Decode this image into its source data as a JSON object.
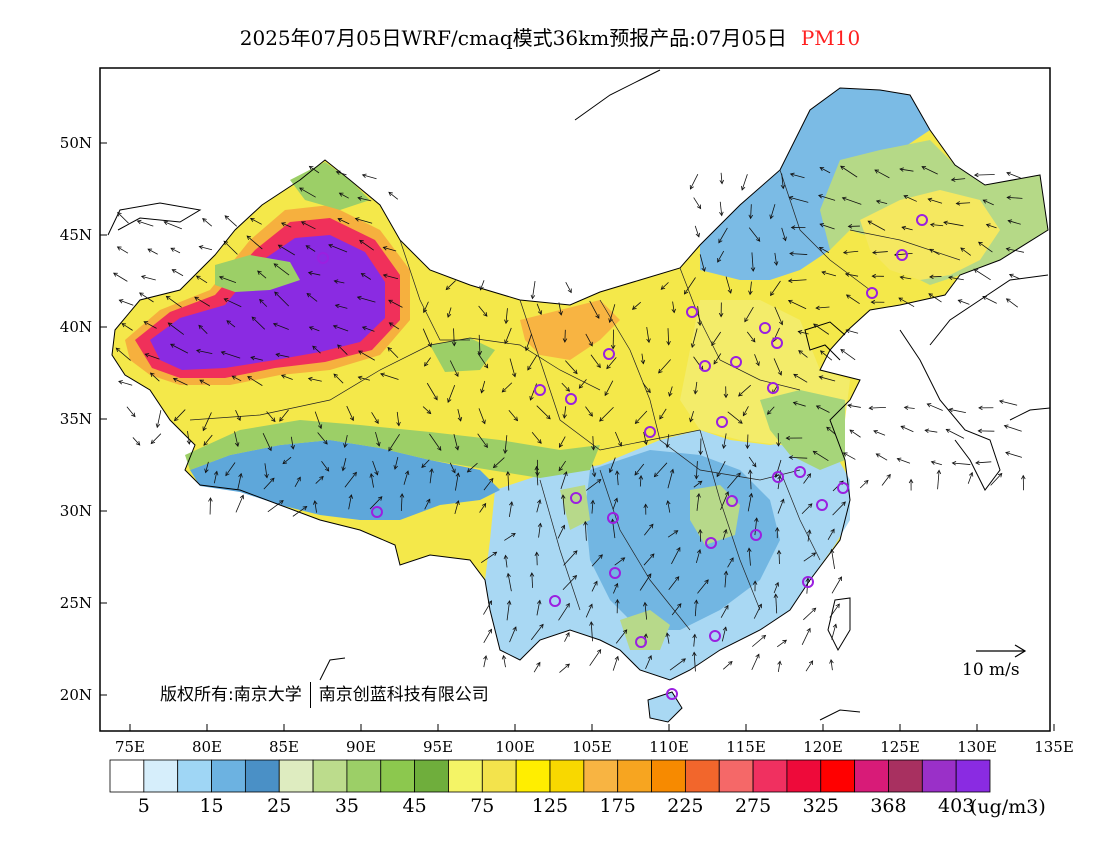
{
  "header": {
    "title": "2025年07月05日WRF/cmaq模式36km预报产品:07月05日",
    "pollutant": "PM10"
  },
  "axes": {
    "lat_labels": [
      "50N",
      "45N",
      "40N",
      "35N",
      "30N",
      "25N",
      "20N"
    ],
    "lon_labels": [
      "75E",
      "80E",
      "85E",
      "90E",
      "95E",
      "100E",
      "105E",
      "110E",
      "115E",
      "120E",
      "125E",
      "130E",
      "135E"
    ]
  },
  "copyright": {
    "text1": "版权所有:南京大学",
    "text2": "南京创蓝科技有限公司"
  },
  "wind_reference": {
    "label": "10 m/s"
  },
  "legend": {
    "labels": [
      "5",
      "15",
      "25",
      "35",
      "45",
      "75",
      "125",
      "175",
      "225",
      "275",
      "325",
      "368",
      "403"
    ],
    "units": "(ug/m3)",
    "colors": [
      "#ffffff",
      "#d6eefb",
      "#9fd6f5",
      "#6cb2e1",
      "#4a90c6",
      "#deecc0",
      "#bcdc8c",
      "#9ccf67",
      "#8cc84e",
      "#6fae3c",
      "#f4f466",
      "#f3e34c",
      "#ffee00",
      "#f8d800",
      "#f8b442",
      "#f7a520",
      "#f78a00",
      "#f2662c",
      "#f56868",
      "#f03060",
      "#ee0a3a",
      "#ff0000",
      "#d81b78",
      "#a83060",
      "#9a30c8",
      "#8a2be2"
    ]
  },
  "colors": {
    "sea": "#ffffff",
    "high_pollution": "#8a2be2",
    "station_marker": "#9a20e0",
    "title_accent": "#ff2020"
  }
}
